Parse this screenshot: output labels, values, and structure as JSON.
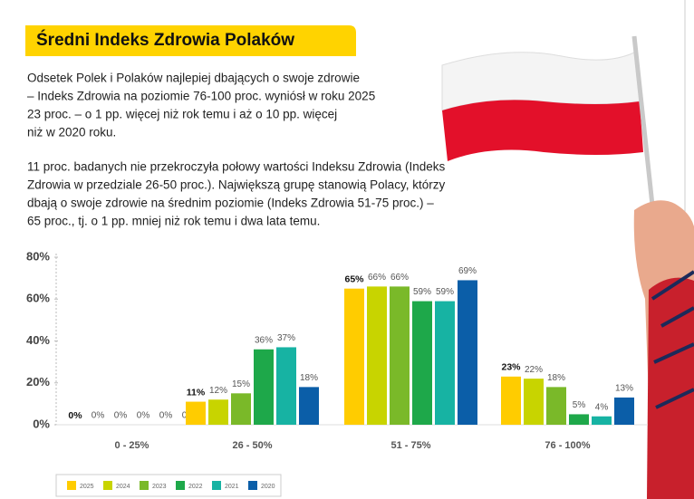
{
  "header": {
    "title": "Średni Indeks Zdrowia Polaków"
  },
  "text": [
    [
      "Odsetek Polek i Polaków najlepiej dbających o swoje zdrowie",
      "– Indeks Zdrowia na poziomie 76-100 proc. wyniósł w roku 2025",
      "23 proc. – o 1 pp. więcej niż rok temu i aż o 10 pp. więcej",
      "niż w 2020 roku."
    ],
    [
      "11 proc. badanych nie przekroczyła połowy wartości Indeksu Zdrowia (Indeks",
      "Zdrowia w przedziale 26-50 proc.). Największą grupę stanowią Polacy, którzy",
      "dbają o swoje zdrowie na średnim poziomie (Indeks Zdrowia 51-75 proc.) –",
      "65 proc., tj. o 1 pp. mniej niż rok temu i dwa lata temu."
    ]
  ],
  "chart_data": {
    "type": "bar",
    "categories": [
      "0 - 25%",
      "26 - 50%",
      "51 - 75%",
      "76 - 100%"
    ],
    "series": [
      {
        "name": "2025",
        "color": "#ffcc00",
        "values": [
          0,
          11,
          65,
          23
        ],
        "value_labels": [
          "0%",
          "11%",
          "65%",
          "23%"
        ]
      },
      {
        "name": "2024",
        "color": "#c8d400",
        "values": [
          0,
          12,
          66,
          22
        ],
        "value_labels": [
          "0%",
          "12%",
          "66%",
          "22%"
        ]
      },
      {
        "name": "2023",
        "color": "#7ab929",
        "values": [
          0,
          15,
          66,
          18
        ],
        "value_labels": [
          "0%",
          "15%",
          "66%",
          "18%"
        ]
      },
      {
        "name": "2022",
        "color": "#1ea84a",
        "values": [
          0,
          36,
          59,
          5
        ],
        "value_labels": [
          "0%",
          "36%",
          "59%",
          "5%"
        ]
      },
      {
        "name": "2021",
        "color": "#17b3a3",
        "values": [
          0,
          37,
          59,
          4
        ],
        "value_labels": [
          "0%",
          "37%",
          "59%",
          "4%"
        ]
      },
      {
        "name": "2020",
        "color": "#0b5ea8",
        "values": [
          0,
          18,
          69,
          13
        ],
        "value_labels": [
          "0%",
          "18%",
          "69%",
          "13%"
        ]
      }
    ],
    "ylim": [
      0,
      80
    ],
    "yticks": [
      {
        "value": 0,
        "label": "0%"
      },
      {
        "value": 20,
        "label": "20%"
      },
      {
        "value": 40,
        "label": "40%"
      },
      {
        "value": 60,
        "label": "60%"
      },
      {
        "value": 80,
        "label": "80%"
      }
    ]
  }
}
